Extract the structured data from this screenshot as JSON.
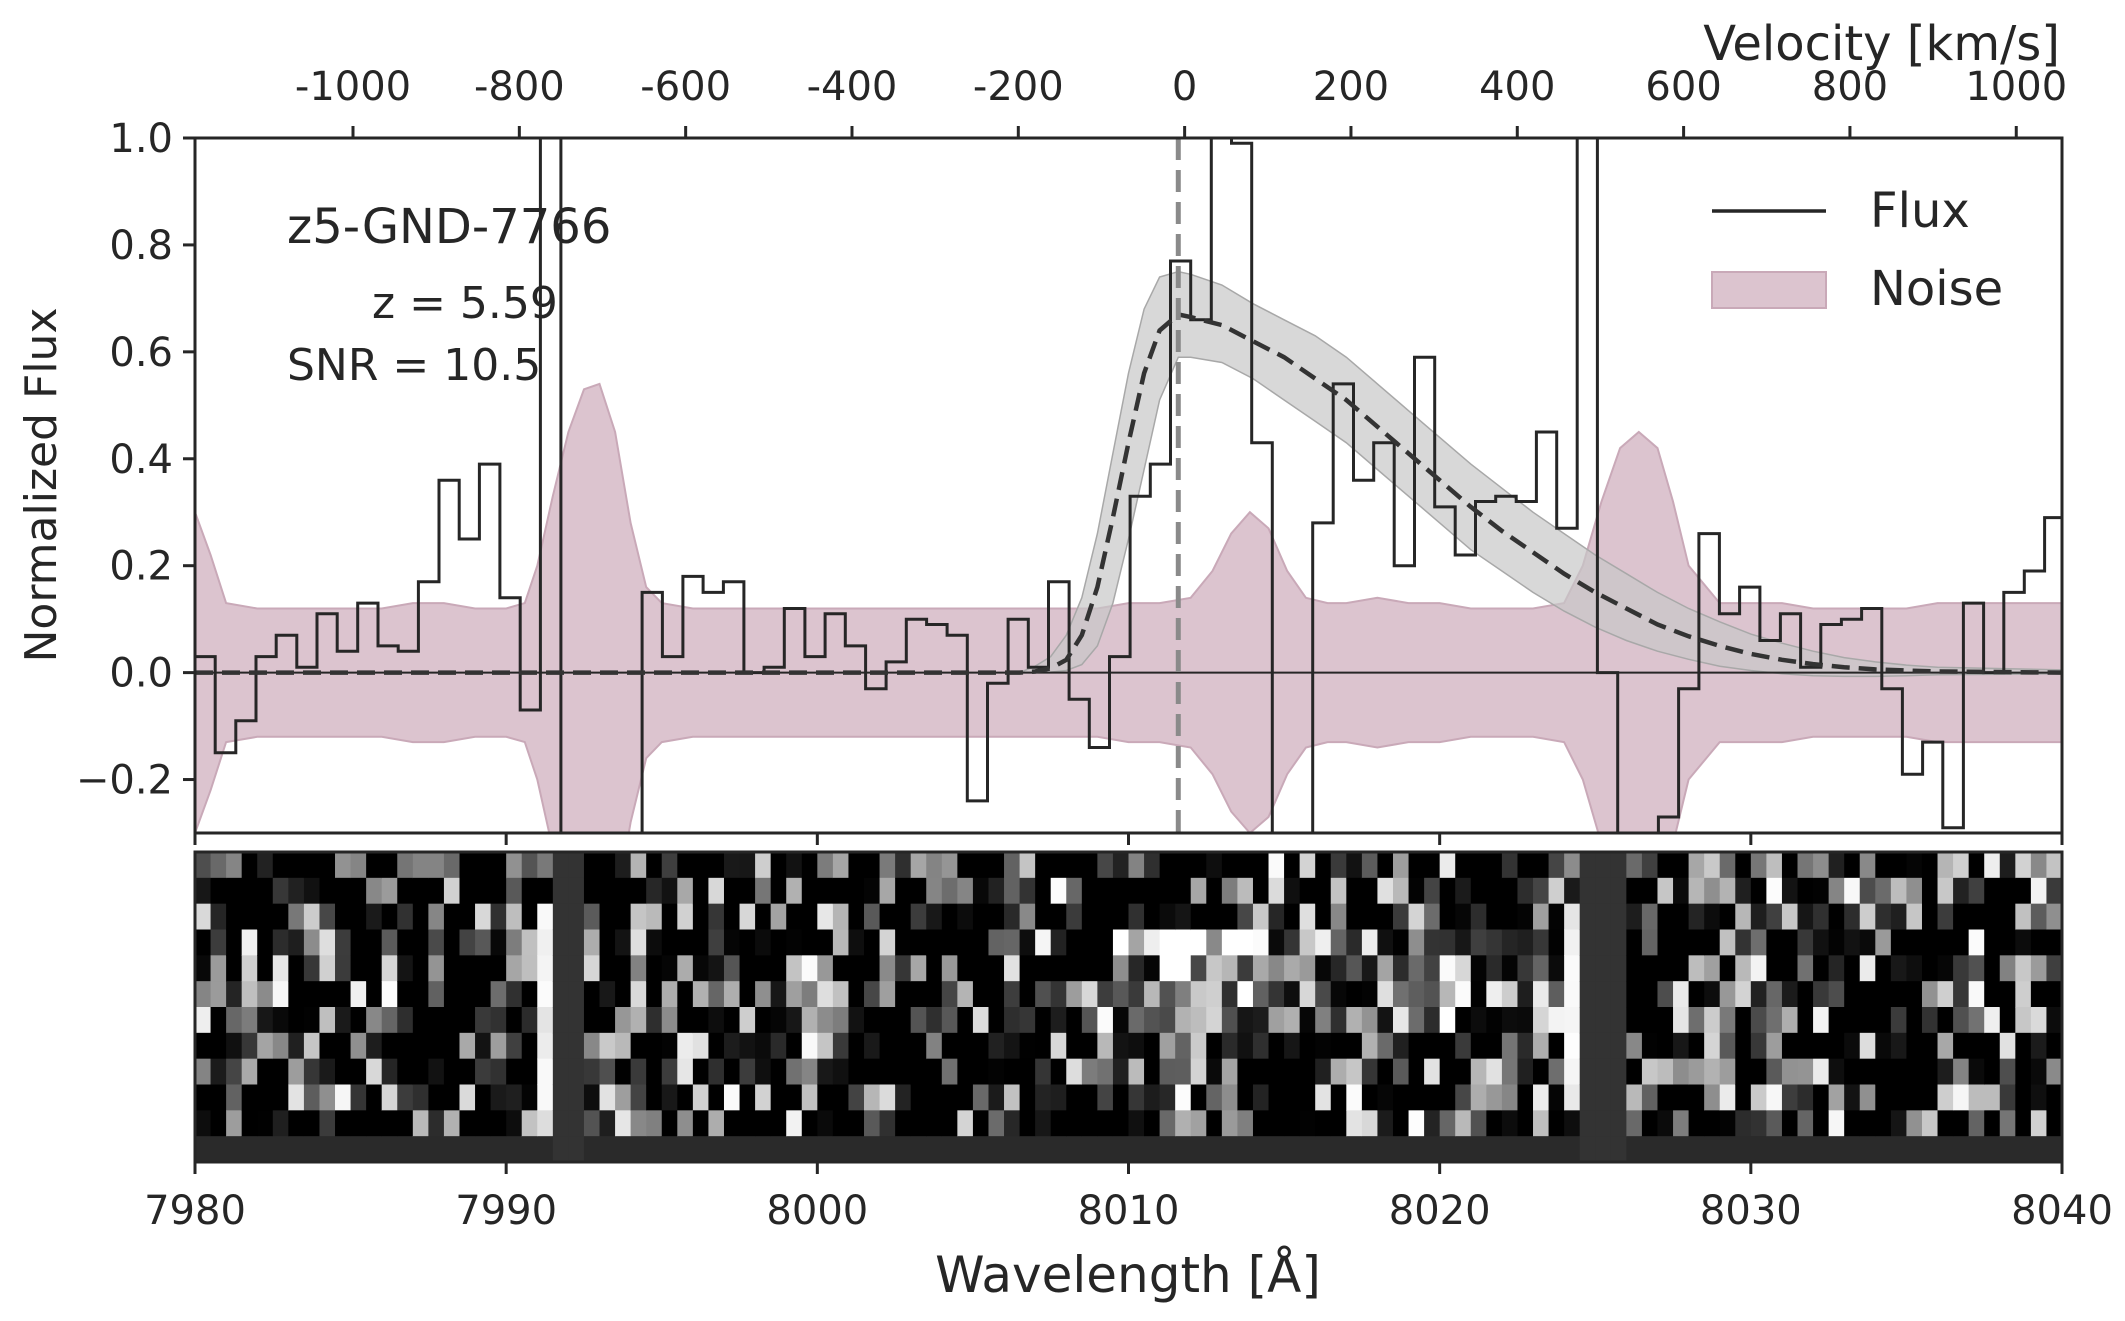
{
  "chart_data": {
    "type": "line",
    "title": "",
    "annotations": {
      "object_name": "z5-GND-7766",
      "redshift": "z = 5.59",
      "snr": "SNR = 10.5"
    },
    "xlabel": "Wavelength [Å]",
    "ylabel": "Normalized Flux",
    "top_xlabel": "Velocity [km/s]",
    "xlim": [
      7980,
      8040
    ],
    "ylim": [
      -0.3,
      1.0
    ],
    "velocity_lim": [
      -1190,
      1055
    ],
    "line_center_wavelength": 8011.6,
    "x_ticks": [
      7980,
      7990,
      8000,
      8010,
      8020,
      8030,
      8040
    ],
    "x_tick_labels": [
      "7980",
      "7990",
      "8000",
      "8010",
      "8020",
      "8030",
      "8040"
    ],
    "y_ticks": [
      -0.2,
      0.0,
      0.2,
      0.4,
      0.6,
      0.8,
      1.0
    ],
    "y_tick_labels": [
      "−0.2",
      "0.0",
      "0.2",
      "0.4",
      "0.6",
      "0.8",
      "1.0"
    ],
    "velocity_ticks": [
      -1000,
      -800,
      -600,
      -400,
      -200,
      0,
      200,
      400,
      600,
      800,
      1000
    ],
    "velocity_tick_labels": [
      "-1000",
      "-800",
      "-600",
      "-400",
      "-200",
      "0",
      "200",
      "400",
      "600",
      "800",
      "1000"
    ],
    "grid": false,
    "legend": {
      "placement": "top-right",
      "entries": [
        {
          "label": "Flux",
          "kind": "line",
          "color": "#262626"
        },
        {
          "label": "Noise",
          "kind": "patch",
          "color": "#dcc4cf"
        }
      ]
    },
    "colors": {
      "flux": "#262626",
      "noise_fill": "#dcc4cf",
      "noise_edge": "#c9a9b8",
      "model": "#333333",
      "model_band": "#c8c8c8",
      "center_line": "#8a8a8a"
    },
    "series": [
      {
        "name": "Flux",
        "step": "post",
        "x": [
          7980.0,
          7980.65,
          7981.31,
          7981.96,
          7982.61,
          7983.27,
          7983.92,
          7984.57,
          7985.23,
          7985.88,
          7986.53,
          7987.18,
          7987.84,
          7988.49,
          7989.14,
          7989.8,
          7990.45,
          7991.1,
          7991.76,
          7992.41,
          7993.06,
          7993.72,
          7994.37,
          7995.02,
          7995.68,
          7996.33,
          7996.98,
          7997.64,
          7998.29,
          7998.94,
          7999.6,
          8000.25,
          8000.9,
          8001.55,
          8002.21,
          8002.86,
          8003.51,
          8004.17,
          8004.82,
          8005.47,
          8006.13,
          8006.78,
          8007.43,
          8008.09,
          8008.74,
          8009.39,
          8010.05,
          8010.7,
          8011.35,
          8012.0,
          8012.66,
          8013.31,
          8013.96,
          8014.62,
          8015.27,
          8015.92,
          8016.58,
          8017.23,
          8017.88,
          8018.54,
          8019.19,
          8019.84,
          8020.5,
          8021.15,
          8021.8,
          8022.46,
          8023.11,
          8023.76,
          8024.42,
          8025.07,
          8025.72,
          8026.37,
          8027.03,
          8027.68,
          8028.33,
          8028.99,
          8029.64,
          8030.29,
          8030.95,
          8031.6,
          8032.25,
          8032.91,
          8033.56,
          8034.21,
          8034.87,
          8035.52,
          8036.17,
          8036.83,
          8037.48,
          8038.13,
          8038.79,
          8039.44,
          8040.0
        ],
        "values": [
          0.03,
          -0.15,
          -0.09,
          0.03,
          0.07,
          0.01,
          0.11,
          0.04,
          0.13,
          0.05,
          0.04,
          0.17,
          0.36,
          0.25,
          0.39,
          0.14,
          -0.07,
          1.0,
          -0.3,
          -0.3,
          -0.3,
          -0.3,
          0.15,
          0.03,
          0.18,
          0.15,
          0.17,
          0.0,
          0.01,
          0.12,
          0.03,
          0.11,
          0.05,
          -0.03,
          0.02,
          0.1,
          0.09,
          0.07,
          -0.24,
          -0.02,
          0.1,
          0.01,
          0.17,
          -0.05,
          -0.14,
          0.03,
          0.33,
          0.39,
          0.77,
          0.66,
          1.0,
          0.99,
          0.43,
          -0.3,
          -0.3,
          0.28,
          0.54,
          0.36,
          0.43,
          0.2,
          0.59,
          0.31,
          0.22,
          0.32,
          0.33,
          0.32,
          0.45,
          0.27,
          1.0,
          0.0,
          -0.3,
          -0.3,
          -0.27,
          -0.03,
          0.26,
          0.11,
          0.16,
          0.06,
          0.11,
          0.01,
          0.09,
          0.1,
          0.12,
          -0.03,
          -0.19,
          -0.13,
          -0.29,
          0.13,
          0.0,
          0.15,
          0.19,
          0.29,
          0.19
        ]
      },
      {
        "name": "Noise",
        "kind": "band",
        "x": [
          7980.0,
          7980.5,
          7981.0,
          7982.0,
          7983.0,
          7984.0,
          7985.0,
          7986.0,
          7987.0,
          7988.0,
          7989.0,
          7990.0,
          7990.6,
          7991.0,
          7991.5,
          7992.0,
          7992.5,
          7993.0,
          7993.5,
          7994.0,
          7994.5,
          7995.0,
          7996.0,
          7997.0,
          7998.0,
          7999.0,
          8000.0,
          8001.0,
          8002.0,
          8003.0,
          8004.0,
          8005.0,
          8006.0,
          8007.0,
          8008.0,
          8009.0,
          8010.0,
          8011.0,
          8012.0,
          8012.7,
          8013.3,
          8013.9,
          8014.5,
          8015.1,
          8015.7,
          8016.4,
          8017.0,
          8018.0,
          8019.0,
          8020.0,
          8021.0,
          8022.0,
          8023.0,
          8024.0,
          8024.6,
          8025.2,
          8025.8,
          8026.4,
          8027.0,
          8027.5,
          8028.0,
          8029.0,
          8030.0,
          8031.0,
          8032.0,
          8033.0,
          8034.0,
          8035.0,
          8036.0,
          8037.0,
          8038.0,
          8039.0,
          8040.0
        ],
        "values": [
          0.3,
          0.22,
          0.13,
          0.12,
          0.12,
          0.12,
          0.12,
          0.12,
          0.13,
          0.13,
          0.12,
          0.12,
          0.13,
          0.2,
          0.33,
          0.45,
          0.53,
          0.54,
          0.45,
          0.28,
          0.16,
          0.13,
          0.12,
          0.12,
          0.12,
          0.12,
          0.12,
          0.12,
          0.12,
          0.12,
          0.12,
          0.12,
          0.12,
          0.12,
          0.12,
          0.12,
          0.13,
          0.13,
          0.14,
          0.19,
          0.26,
          0.3,
          0.27,
          0.19,
          0.14,
          0.13,
          0.13,
          0.14,
          0.13,
          0.13,
          0.12,
          0.12,
          0.12,
          0.13,
          0.2,
          0.32,
          0.42,
          0.45,
          0.42,
          0.32,
          0.2,
          0.13,
          0.13,
          0.13,
          0.12,
          0.12,
          0.12,
          0.12,
          0.13,
          0.13,
          0.13,
          0.13,
          0.13
        ]
      },
      {
        "name": "",
        "kind": "model",
        "x": [
          7980,
          8006.5,
          8007,
          8007.5,
          8008,
          8008.5,
          8009,
          8009.5,
          8010,
          8010.5,
          8011,
          8011.6,
          8012,
          8013,
          8014,
          8015,
          8016,
          8017,
          8018,
          8019,
          8020,
          8021,
          8022,
          8023,
          8024,
          8025,
          8026,
          8027,
          8028,
          8029,
          8030,
          8031,
          8032,
          8033,
          8034,
          8035,
          8036,
          8040
        ],
        "values": [
          0.0,
          0.0,
          0.002,
          0.008,
          0.024,
          0.07,
          0.16,
          0.29,
          0.43,
          0.56,
          0.64,
          0.67,
          0.665,
          0.65,
          0.62,
          0.59,
          0.55,
          0.51,
          0.46,
          0.41,
          0.36,
          0.31,
          0.265,
          0.225,
          0.185,
          0.15,
          0.12,
          0.09,
          0.068,
          0.05,
          0.035,
          0.024,
          0.016,
          0.01,
          0.006,
          0.004,
          0.002,
          0.0
        ],
        "band_lower": [
          0.0,
          0.0,
          0.0,
          0.001,
          0.004,
          0.015,
          0.05,
          0.13,
          0.25,
          0.38,
          0.51,
          0.59,
          0.59,
          0.58,
          0.55,
          0.51,
          0.47,
          0.43,
          0.38,
          0.33,
          0.28,
          0.23,
          0.19,
          0.15,
          0.115,
          0.085,
          0.06,
          0.04,
          0.025,
          0.012,
          0.004,
          -0.002,
          -0.006,
          -0.007,
          -0.007,
          -0.006,
          -0.004,
          -0.002
        ],
        "band_upper": [
          0.0,
          0.0,
          0.012,
          0.03,
          0.07,
          0.14,
          0.26,
          0.41,
          0.56,
          0.68,
          0.74,
          0.75,
          0.745,
          0.725,
          0.69,
          0.66,
          0.63,
          0.59,
          0.54,
          0.49,
          0.44,
          0.39,
          0.345,
          0.3,
          0.26,
          0.22,
          0.185,
          0.15,
          0.12,
          0.095,
          0.072,
          0.055,
          0.04,
          0.028,
          0.02,
          0.014,
          0.01,
          0.005
        ]
      }
    ],
    "spectrum_2d": {
      "description_rows": 12,
      "masked_wavelength_ranges": [
        [
          7991.3,
          7992.7
        ],
        [
          8024.3,
          8025.8
        ]
      ],
      "pixel_columns_per_angstrom": 2.0
    }
  }
}
